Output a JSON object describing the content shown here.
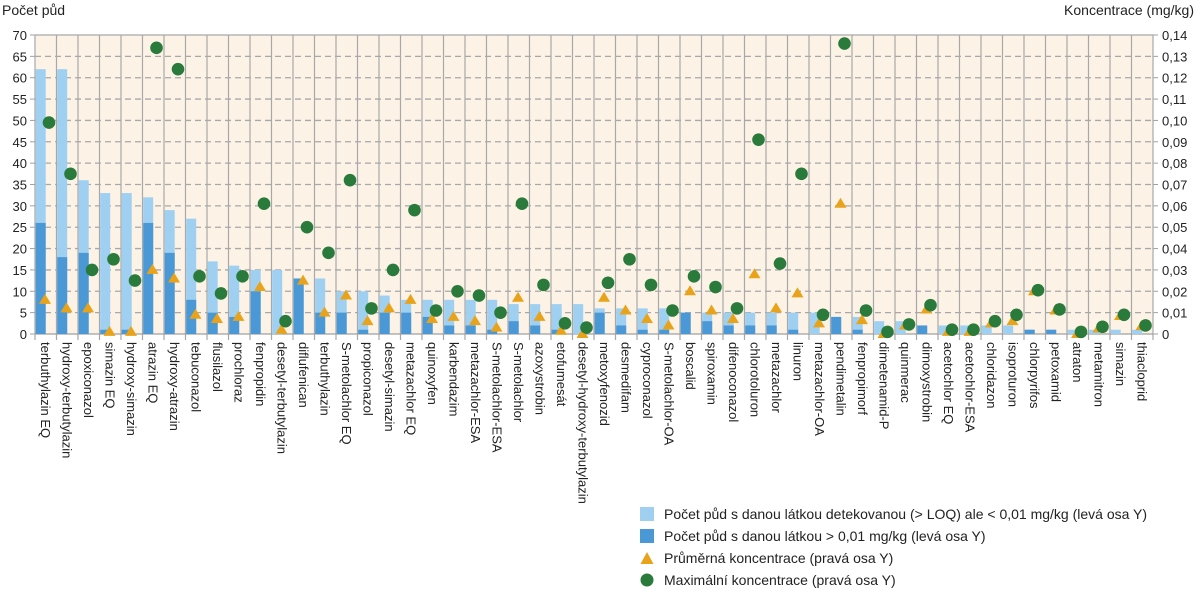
{
  "chart_data": {
    "type": "bar",
    "left_axis_title": "Počet půd",
    "right_axis_title": "Koncentrace (mg/kg)",
    "ylim_left": [
      0,
      70
    ],
    "ylim_right": [
      0,
      0.14
    ],
    "left_ticks": [
      "0",
      "5",
      "10",
      "15",
      "20",
      "25",
      "30",
      "35",
      "40",
      "45",
      "50",
      "55",
      "60",
      "65",
      "70"
    ],
    "right_ticks": [
      "0",
      "0,01",
      "0,02",
      "0,03",
      "0,04",
      "0,05",
      "0,06",
      "0,07",
      "0,08",
      "0,09",
      "0,10",
      "0,11",
      "0,12",
      "0,13",
      "0,14"
    ],
    "grid": true,
    "legend_position": "bottom-right",
    "categories": [
      "terbuthylazin EQ",
      "hydroxy-terbutylazin",
      "epoxiconazol",
      "simazin EQ",
      "hydroxy-simazin",
      "atrazin EQ",
      "hydroxy-atrazin",
      "tebuconazol",
      "flusilazol",
      "prochloraz",
      "fenpropidin",
      "desetyl-terbutylazin",
      "diflufenican",
      "terbuthylazin",
      "S-metolachlor EQ",
      "propiconazol",
      "desetyl-simazin",
      "metazachlor EQ",
      "quinoxyfen",
      "karbendazim",
      "metazachlor-ESA",
      "S-metolachlor-ESA",
      "S-metolachlor",
      "azoxystrobin",
      "etofumesát",
      "desetyl-hydroxy-terbutylazin",
      "metoxyfenozid",
      "desmedifam",
      "cyproconazol",
      "S-metolachlor-OA",
      "boscalid",
      "spiroxamin",
      "difenoconazol",
      "chlorotoluron",
      "metazachlor",
      "linuron",
      "metazachlor-OA",
      "pendimetalin",
      "fenpropimorf",
      "dimetenamid-P",
      "quinmerac",
      "dimoxystrobin",
      "acetochlor EQ",
      "acetochlor-ESA",
      "chloridazon",
      "isoproturon",
      "chlorpyrifos",
      "petoxamid",
      "atraton",
      "metamitron",
      "simazin",
      "thiacloprid"
    ],
    "series": [
      {
        "name": "Počet půd s danou látkou detekovanou (> LOQ) ale < 0,01 mg/kg (levá osa Y)",
        "axis": "left",
        "kind": "bar-total",
        "color": "#9fd0f2",
        "values": [
          62,
          62,
          36,
          33,
          33,
          32,
          29,
          27,
          17,
          16,
          15,
          15,
          13,
          13,
          10,
          10,
          9,
          8,
          8,
          8,
          8,
          8,
          7,
          7,
          7,
          7,
          6,
          6,
          6,
          6,
          5,
          5,
          5,
          5,
          5,
          5,
          5,
          4,
          4,
          3,
          3,
          2,
          2,
          2,
          2,
          2,
          1,
          1,
          1,
          1,
          1,
          1
        ]
      },
      {
        "name": "Počet půd s danou látkou > 0,01 mg/kg (levá osa Y)",
        "axis": "left",
        "kind": "bar",
        "color": "#4a98d6",
        "values": [
          26,
          18,
          19,
          1,
          1,
          26,
          19,
          8,
          5,
          4,
          10,
          0,
          13,
          5,
          5,
          1,
          5,
          5,
          4,
          2,
          2,
          1,
          3,
          2,
          1,
          0,
          5,
          2,
          1,
          1,
          5,
          3,
          2,
          2,
          2,
          1,
          0,
          4,
          1,
          0,
          0,
          2,
          0,
          0,
          0,
          0,
          1,
          1,
          0,
          0,
          0,
          0
        ]
      },
      {
        "name": "Průměrná koncentrace (pravá osa Y)",
        "axis": "right",
        "kind": "triangle",
        "color": "#e8a31b",
        "values": [
          0.016,
          0.012,
          0.012,
          0.001,
          0.001,
          0.03,
          0.026,
          0.009,
          0.007,
          0.008,
          0.022,
          0.002,
          0.025,
          0.01,
          0.018,
          0.006,
          0.012,
          0.016,
          0.007,
          0.008,
          0.006,
          0.003,
          0.017,
          0.008,
          0.0015,
          0,
          0.017,
          0.011,
          0.007,
          0.004,
          0.02,
          0.011,
          0.007,
          0.028,
          0.012,
          0.019,
          0.005,
          0.061,
          0.0065,
          0,
          0.004,
          0.0115,
          0.001,
          0.001,
          0.005,
          0.006,
          0.02,
          0.011,
          0,
          0.0026,
          0.0084,
          0.0037
        ]
      },
      {
        "name": "Maximální koncentrace (pravá osa Y)",
        "axis": "right",
        "kind": "circle",
        "color": "#2a7a3b",
        "values": [
          0.099,
          0.075,
          0.03,
          0.035,
          0.025,
          0.134,
          0.124,
          0.027,
          0.019,
          0.027,
          0.061,
          0.006,
          0.05,
          0.038,
          0.072,
          0.012,
          0.03,
          0.058,
          0.011,
          0.02,
          0.018,
          0.01,
          0.061,
          0.023,
          0.005,
          0.003,
          0.024,
          0.035,
          0.023,
          0.011,
          0.027,
          0.022,
          0.012,
          0.091,
          0.033,
          0.075,
          0.009,
          0.136,
          0.011,
          0.001,
          0.0045,
          0.0135,
          0.002,
          0.002,
          0.006,
          0.009,
          0.0205,
          0.0115,
          0.001,
          0.0034,
          0.009,
          0.004
        ]
      }
    ]
  }
}
